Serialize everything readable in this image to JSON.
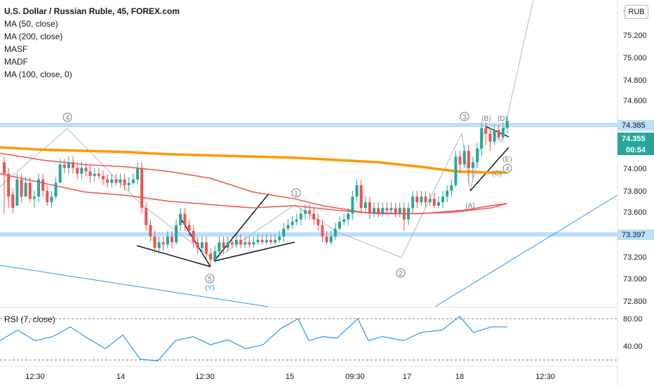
{
  "legend": {
    "title": "U.S. Dollar / Russian Ruble, 45, FOREX.com",
    "indicators": [
      "MA (50, close)",
      "MA (200, close)",
      "MASF",
      "MADF",
      "MA (100, close, 0)"
    ]
  },
  "currency_button": "RUB",
  "rsi_label": "RSI (7, close)",
  "chart_data": [
    {
      "type": "candlestick",
      "title": "U.S. Dollar / Russian Ruble, 45, FOREX.com",
      "ylim": [
        72.73,
        75.42
      ],
      "y_ticks": [
        "7",
        "75.200",
        "75.000",
        "74.800",
        "74.600",
        "74.385",
        "74.355",
        "74.000",
        "73.800",
        "73.600",
        "73.397",
        "73.200",
        "73.000",
        "72.800"
      ],
      "x_ticks": [
        "12:30",
        "14",
        "12:30",
        "15",
        "09:30",
        "17",
        "18",
        "12:30"
      ],
      "last_price": "74.355",
      "countdown": "00:54",
      "horizontal_levels": [
        74.385,
        73.397
      ],
      "series": [
        {
          "name": "MA (50, close)",
          "color": "#ef5350",
          "points": [
            [
              0,
              73.9
            ],
            [
              60,
              73.82
            ],
            [
              120,
              73.74
            ],
            [
              180,
              73.71
            ],
            [
              240,
              73.66
            ],
            [
              300,
              73.63
            ],
            [
              360,
              73.6
            ],
            [
              420,
              73.62
            ],
            [
              480,
              73.58
            ],
            [
              540,
              73.55
            ],
            [
              600,
              73.55
            ],
            [
              660,
              73.58
            ],
            [
              700,
              73.62
            ],
            [
              723,
              73.64
            ]
          ]
        },
        {
          "name": "MA (100, close, 0)",
          "color": "#ef5350",
          "points": [
            [
              0,
              74.08
            ],
            [
              60,
              74.02
            ],
            [
              120,
              73.98
            ],
            [
              180,
              73.96
            ],
            [
              240,
              73.92
            ],
            [
              300,
              73.86
            ],
            [
              360,
              73.74
            ],
            [
              420,
              73.68
            ],
            [
              460,
              73.62
            ],
            [
              520,
              73.56
            ],
            [
              580,
              73.55
            ],
            [
              640,
              73.56
            ],
            [
              700,
              73.6
            ],
            [
              723,
              73.64
            ]
          ]
        },
        {
          "name": "MA (200, close)",
          "color": "#ff9800",
          "points": [
            [
              0,
              74.13
            ],
            [
              60,
              74.11
            ],
            [
              120,
              74.1
            ],
            [
              180,
              74.09
            ],
            [
              240,
              74.07
            ],
            [
              300,
              74.06
            ],
            [
              360,
              74.05
            ],
            [
              420,
              74.04
            ],
            [
              480,
              74.02
            ],
            [
              540,
              74.0
            ],
            [
              600,
              73.96
            ],
            [
              650,
              73.92
            ],
            [
              700,
              73.91
            ],
            [
              723,
              73.91
            ]
          ]
        }
      ],
      "candles": [
        [
          74.0,
          73.9,
          73.55
        ],
        [
          73.9,
          73.7,
          73.6
        ],
        [
          73.72,
          73.6,
          73.55
        ],
        [
          73.62,
          73.85,
          73.8
        ],
        [
          73.85,
          73.7,
          73.65
        ],
        [
          73.7,
          73.82,
          73.8
        ],
        [
          73.82,
          73.68,
          73.65
        ],
        [
          73.68,
          73.7,
          73.6
        ],
        [
          73.7,
          73.85,
          73.65
        ],
        [
          73.85,
          73.75,
          73.7
        ],
        [
          73.75,
          73.65,
          73.62
        ],
        [
          73.65,
          73.7,
          73.6
        ],
        [
          73.7,
          73.82,
          73.68
        ],
        [
          73.82,
          73.98,
          73.95
        ],
        [
          73.98,
          73.95,
          73.9
        ],
        [
          73.95,
          74.0,
          73.9
        ],
        [
          74.0,
          73.95,
          73.9
        ],
        [
          73.95,
          73.9,
          73.85
        ],
        [
          73.9,
          73.95,
          73.85
        ],
        [
          73.95,
          73.92,
          73.88
        ],
        [
          73.92,
          73.88,
          73.82
        ],
        [
          73.88,
          73.9,
          73.83
        ],
        [
          73.9,
          73.88,
          73.85
        ],
        [
          73.88,
          73.85,
          73.8
        ],
        [
          73.85,
          73.82,
          73.78
        ],
        [
          73.82,
          73.85,
          73.78
        ],
        [
          73.85,
          73.82,
          73.8
        ],
        [
          73.82,
          73.85,
          73.78
        ],
        [
          73.85,
          73.8,
          73.75
        ],
        [
          73.8,
          73.82,
          73.75
        ],
        [
          73.82,
          73.85,
          73.8
        ],
        [
          73.85,
          73.95,
          73.8
        ],
        [
          73.95,
          73.6,
          73.55
        ],
        [
          73.6,
          73.45,
          73.4
        ],
        [
          73.45,
          73.35,
          73.3
        ],
        [
          73.35,
          73.25,
          73.2
        ],
        [
          73.25,
          73.3,
          73.2
        ],
        [
          73.3,
          73.28,
          73.22
        ],
        [
          73.28,
          73.35,
          73.25
        ],
        [
          73.35,
          73.3,
          73.25
        ],
        [
          73.3,
          73.45,
          73.28
        ],
        [
          73.45,
          73.55,
          73.4
        ],
        [
          73.55,
          73.45,
          73.4
        ],
        [
          73.45,
          73.4,
          73.35
        ],
        [
          73.4,
          73.3,
          73.25
        ],
        [
          73.3,
          73.25,
          73.2
        ],
        [
          73.25,
          73.3,
          73.2
        ],
        [
          73.3,
          73.2,
          73.15
        ],
        [
          73.2,
          73.15,
          73.1
        ],
        [
          73.15,
          73.22,
          73.12
        ],
        [
          73.22,
          73.3,
          73.18
        ],
        [
          73.3,
          73.25,
          73.2
        ],
        [
          73.25,
          73.3,
          73.22
        ],
        [
          73.3,
          73.28,
          73.25
        ],
        [
          73.28,
          73.32,
          73.25
        ],
        [
          73.32,
          73.28,
          73.25
        ],
        [
          73.28,
          73.3,
          73.25
        ],
        [
          73.3,
          73.28,
          73.25
        ],
        [
          73.28,
          73.3,
          73.25
        ],
        [
          73.3,
          73.32,
          73.28
        ],
        [
          73.32,
          73.3,
          73.28
        ],
        [
          73.3,
          73.32,
          73.28
        ],
        [
          73.32,
          73.3,
          73.28
        ],
        [
          73.3,
          73.32,
          73.28
        ],
        [
          73.32,
          73.35,
          73.3
        ],
        [
          73.35,
          73.42,
          73.3
        ],
        [
          73.42,
          73.45,
          73.4
        ],
        [
          73.45,
          73.48,
          73.42
        ],
        [
          73.48,
          73.5,
          73.45
        ],
        [
          73.5,
          73.55,
          73.45
        ],
        [
          73.55,
          73.58,
          73.5
        ],
        [
          73.58,
          73.55,
          73.5
        ],
        [
          73.55,
          73.5,
          73.45
        ],
        [
          73.5,
          73.45,
          73.4
        ],
        [
          73.45,
          73.35,
          73.3
        ],
        [
          73.35,
          73.3,
          73.28
        ],
        [
          73.3,
          73.35,
          73.28
        ],
        [
          73.35,
          73.42,
          73.32
        ],
        [
          73.42,
          73.48,
          73.4
        ],
        [
          73.48,
          73.5,
          73.45
        ],
        [
          73.5,
          73.55,
          73.45
        ],
        [
          73.55,
          73.7,
          73.5
        ],
        [
          73.7,
          73.8,
          73.65
        ],
        [
          73.8,
          73.6,
          73.55
        ],
        [
          73.6,
          73.65,
          73.55
        ],
        [
          73.65,
          73.55,
          73.5
        ],
        [
          73.55,
          73.6,
          73.52
        ],
        [
          73.6,
          73.55,
          73.52
        ],
        [
          73.55,
          73.6,
          73.52
        ],
        [
          73.6,
          73.58,
          73.55
        ],
        [
          73.58,
          73.6,
          73.55
        ],
        [
          73.6,
          73.55,
          73.52
        ],
        [
          73.55,
          73.6,
          73.52
        ],
        [
          73.6,
          73.5,
          73.4
        ],
        [
          73.5,
          73.6,
          73.45
        ],
        [
          73.6,
          73.7,
          73.55
        ],
        [
          73.7,
          73.65,
          73.6
        ],
        [
          73.65,
          73.7,
          73.62
        ],
        [
          73.7,
          73.65,
          73.6
        ],
        [
          73.65,
          73.68,
          73.62
        ],
        [
          73.68,
          73.62,
          73.6
        ],
        [
          73.62,
          73.65,
          73.6
        ],
        [
          73.65,
          73.7,
          73.6
        ],
        [
          73.7,
          73.75,
          73.65
        ],
        [
          73.75,
          73.8,
          73.7
        ],
        [
          73.8,
          74.05,
          73.78
        ],
        [
          74.05,
          73.98,
          73.9
        ],
        [
          73.98,
          74.1,
          73.95
        ],
        [
          74.1,
          73.95,
          73.82
        ],
        [
          73.95,
          74.0,
          73.85
        ],
        [
          74.0,
          74.12,
          73.95
        ],
        [
          74.12,
          74.3,
          74.05
        ],
        [
          74.3,
          74.25,
          74.15
        ],
        [
          74.25,
          74.18,
          74.1
        ],
        [
          74.18,
          74.28,
          74.15
        ],
        [
          74.28,
          74.22,
          74.2
        ],
        [
          74.22,
          74.3,
          74.2
        ],
        [
          74.3,
          74.36,
          74.25
        ]
      ]
    },
    {
      "type": "line",
      "title": "RSI (7, close)",
      "ylim": [
        25,
        90
      ],
      "y_ticks": [
        "80.00",
        "40.00"
      ],
      "levels": [
        80,
        30
      ],
      "series": [
        {
          "name": "RSI (7, close)",
          "color": "#2196f3",
          "points": [
            [
              0,
              55
            ],
            [
              25,
              68
            ],
            [
              50,
              55
            ],
            [
              75,
              60
            ],
            [
              100,
              72
            ],
            [
              125,
              58
            ],
            [
              150,
              45
            ],
            [
              175,
              62
            ],
            [
              200,
              32
            ],
            [
              225,
              30
            ],
            [
              250,
              55
            ],
            [
              275,
              60
            ],
            [
              300,
              50
            ],
            [
              325,
              56
            ],
            [
              350,
              45
            ],
            [
              375,
              50
            ],
            [
              400,
              70
            ],
            [
              425,
              82
            ],
            [
              440,
              55
            ],
            [
              460,
              60
            ],
            [
              480,
              58
            ],
            [
              510,
              82
            ],
            [
              525,
              55
            ],
            [
              545,
              60
            ],
            [
              575,
              55
            ],
            [
              600,
              65
            ],
            [
              630,
              68
            ],
            [
              655,
              85
            ],
            [
              675,
              65
            ],
            [
              700,
              72
            ],
            [
              723,
              72
            ]
          ]
        }
      ]
    }
  ],
  "annotations": {
    "waves": [
      "4",
      "5",
      "(Y)",
      "1",
      "2",
      "3",
      "(A)",
      "(B)",
      "(C)",
      "(D)",
      "(E)",
      "4"
    ]
  }
}
